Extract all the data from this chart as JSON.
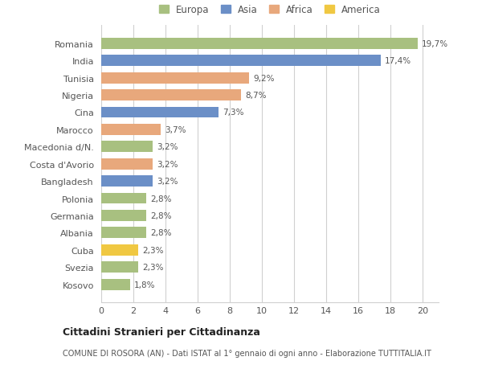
{
  "countries": [
    "Romania",
    "India",
    "Tunisia",
    "Nigeria",
    "Cina",
    "Marocco",
    "Macedonia d/N.",
    "Costa d'Avorio",
    "Bangladesh",
    "Polonia",
    "Germania",
    "Albania",
    "Cuba",
    "Svezia",
    "Kosovo"
  ],
  "values": [
    19.7,
    17.4,
    9.2,
    8.7,
    7.3,
    3.7,
    3.2,
    3.2,
    3.2,
    2.8,
    2.8,
    2.8,
    2.3,
    2.3,
    1.8
  ],
  "labels": [
    "19,7%",
    "17,4%",
    "9,2%",
    "8,7%",
    "7,3%",
    "3,7%",
    "3,2%",
    "3,2%",
    "3,2%",
    "2,8%",
    "2,8%",
    "2,8%",
    "2,3%",
    "2,3%",
    "1,8%"
  ],
  "colors": [
    "#a8c080",
    "#6b8fc7",
    "#e8a87c",
    "#e8a87c",
    "#6b8fc7",
    "#e8a87c",
    "#a8c080",
    "#e8a87c",
    "#6b8fc7",
    "#a8c080",
    "#a8c080",
    "#a8c080",
    "#f0c842",
    "#a8c080",
    "#a8c080"
  ],
  "continents": [
    "Europa",
    "Asia",
    "Africa",
    "America"
  ],
  "legend_colors": [
    "#a8c080",
    "#6b8fc7",
    "#e8a87c",
    "#f0c842"
  ],
  "title": "Cittadini Stranieri per Cittadinanza",
  "subtitle": "COMUNE DI ROSORA (AN) - Dati ISTAT al 1° gennaio di ogni anno - Elaborazione TUTTITALIA.IT",
  "xlim": [
    0,
    21
  ],
  "xticks": [
    0,
    2,
    4,
    6,
    8,
    10,
    12,
    14,
    16,
    18,
    20
  ],
  "background_color": "#ffffff",
  "grid_color": "#d0d0d0",
  "bar_height": 0.65
}
